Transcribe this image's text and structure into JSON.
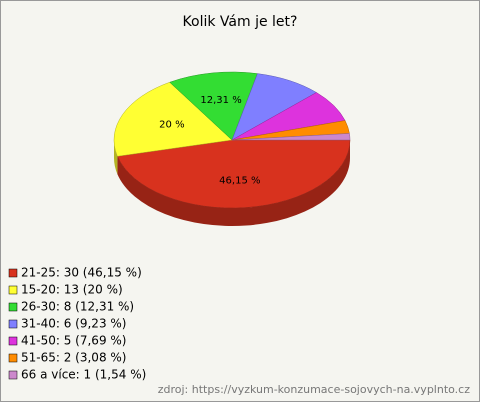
{
  "chart_data": {
    "type": "pie",
    "title": "Kolik Vám je let?",
    "categories": [
      "21-25: 30 (46,15 %)",
      "15-20: 13 (20 %)",
      "26-30: 8 (12,31 %)",
      "31-40: 6 (9,23 %)",
      "41-50: 5 (7,69 %)",
      "51-65: 2 (3,08 %)",
      "66 a více: 1 (1,54 %)"
    ],
    "values": [
      46.15,
      20,
      12.31,
      9.23,
      7.69,
      3.08,
      1.54
    ],
    "value_labels": [
      "46,15 %",
      "20 %",
      "12,31 %",
      null,
      null,
      null,
      null
    ],
    "colors": [
      "#d8321e",
      "#ffff33",
      "#33dd33",
      "#7f7fff",
      "#dd33dd",
      "#ff8c00",
      "#cc88cc"
    ],
    "source": "zdroj: https://vyzkum-konzumace-sojovych-na.vyplnto.cz"
  }
}
